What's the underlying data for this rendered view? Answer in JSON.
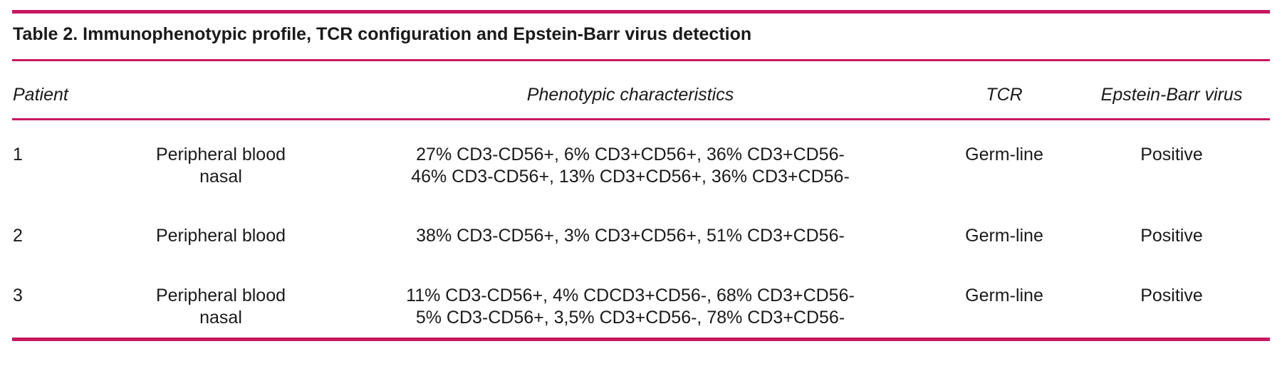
{
  "table": {
    "title": "Table 2. Immunophenotypic profile, TCR configuration and Epstein-Barr virus detection",
    "headers": {
      "patient": "Patient",
      "sample": "",
      "phenotype": "Phenotypic characteristics",
      "tcr": "TCR",
      "ebv": "Epstein-Barr virus"
    },
    "rows": [
      {
        "patient": "1",
        "sample": [
          "Peripheral blood",
          "nasal"
        ],
        "phenotype": [
          "27% CD3-CD56+, 6% CD3+CD56+, 36% CD3+CD56-",
          "46% CD3-CD56+, 13% CD3+CD56+, 36% CD3+CD56-"
        ],
        "tcr": "Germ-line",
        "ebv": "Positive"
      },
      {
        "patient": "2",
        "sample": [
          "Peripheral blood"
        ],
        "phenotype": [
          "38% CD3-CD56+, 3% CD3+CD56+, 51% CD3+CD56-"
        ],
        "tcr": "Germ-line",
        "ebv": "Positive"
      },
      {
        "patient": "3",
        "sample": [
          "Peripheral blood",
          "nasal"
        ],
        "phenotype": [
          "11% CD3-CD56+, 4% CDCD3+CD56-, 68% CD3+CD56-",
          "5% CD3-CD56+, 3,5% CD3+CD56-, 78% CD3+CD56-"
        ],
        "tcr": "Germ-line",
        "ebv": "Positive"
      }
    ],
    "colors": {
      "rule": "#c8175f",
      "text": "#1a1a1a"
    }
  }
}
